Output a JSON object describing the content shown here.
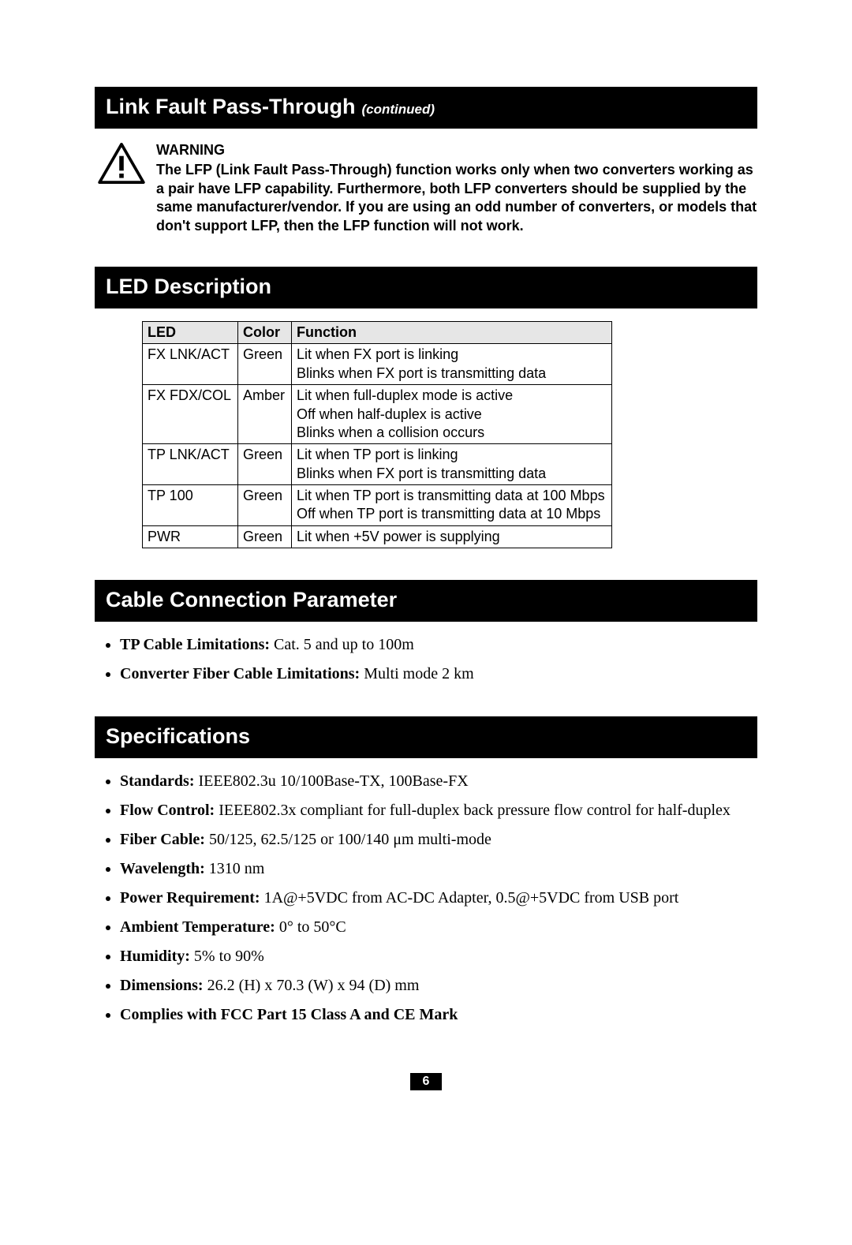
{
  "section1": {
    "title": "Link Fault Pass-Through",
    "subtitle": "(continued)",
    "warning_heading": "WARNING",
    "warning_body": "The LFP (Link Fault Pass-Through) function works only when two converters working as a pair have LFP capability. Furthermore, both LFP converters should be supplied by the same manufacturer/vendor. If you are using an odd number of converters, or models that don't support LFP, then the LFP function will not work."
  },
  "section2": {
    "title": "LED Description",
    "table": {
      "columns": [
        "LED",
        "Color",
        "Function"
      ],
      "rows": [
        [
          "FX LNK/ACT",
          "Green",
          "Lit when FX port is linking\nBlinks when FX port is transmitting data"
        ],
        [
          "FX FDX/COL",
          "Amber",
          "Lit when full-duplex mode is active\nOff when half-duplex is active\nBlinks when a collision occurs"
        ],
        [
          "TP LNK/ACT",
          "Green",
          "Lit when TP port is linking\nBlinks when FX port is transmitting data"
        ],
        [
          "TP 100",
          "Green",
          "Lit when TP port is transmitting data at 100 Mbps\nOff when TP port is transmitting data at 10 Mbps"
        ],
        [
          "PWR",
          "Green",
          "Lit when +5V power is supplying"
        ]
      ]
    }
  },
  "section3": {
    "title": "Cable Connection Parameter",
    "bullets": [
      {
        "label": "TP Cable Limitations:",
        "value": " Cat. 5 and up to 100m"
      },
      {
        "label": "Converter Fiber Cable Limitations:",
        "value": " Multi mode 2 km"
      }
    ]
  },
  "section4": {
    "title": "Specifications",
    "bullets": [
      {
        "label": "Standards:",
        "value": " IEEE802.3u 10/100Base-TX, 100Base-FX"
      },
      {
        "label": "Flow Control:",
        "value": " IEEE802.3x compliant for full-duplex back pressure flow control for half-duplex"
      },
      {
        "label": "Fiber Cable:",
        "value": " 50/125, 62.5/125 or 100/140 μm multi-mode"
      },
      {
        "label": "Wavelength:",
        "value": " 1310 nm"
      },
      {
        "label": "Power Requirement:",
        "value": " 1A@+5VDC from AC-DC Adapter, 0.5@+5VDC from USB port"
      },
      {
        "label": "Ambient Temperature:",
        "value": " 0° to 50°C"
      },
      {
        "label": "Humidity:",
        "value": " 5% to 90%"
      },
      {
        "label": "Dimensions:",
        "value": " 26.2 (H) x 70.3 (W) x 94 (D) mm"
      },
      {
        "label": "Complies with FCC Part 15 Class A and CE Mark",
        "value": ""
      }
    ]
  },
  "page_number": "6"
}
